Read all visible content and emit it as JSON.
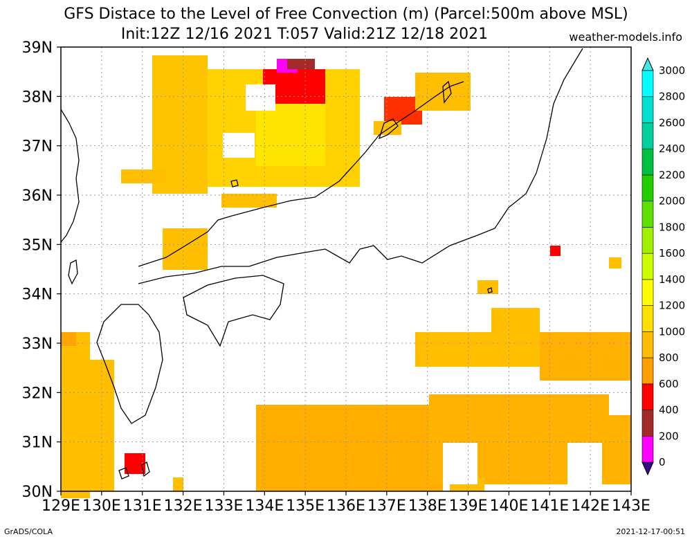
{
  "title": {
    "line1": "GFS Distace to the Level of Free Convection (m) (Parcel:500m above MSL)",
    "line2": "Init:12Z 12/16 2021 T:057 Valid:21Z 12/18 2021",
    "site": "weather-models.info"
  },
  "footer": {
    "left": "GrADS/COLA",
    "right": "2021-12-17-00:51"
  },
  "map": {
    "lon_labels": [
      "129E",
      "130E",
      "131E",
      "132E",
      "133E",
      "134E",
      "135E",
      "136E",
      "137E",
      "138E",
      "139E",
      "140E",
      "141E",
      "142E",
      "143E"
    ],
    "lat_labels": [
      "30N",
      "31N",
      "32N",
      "33N",
      "34N",
      "35N",
      "36N",
      "37N",
      "38N",
      "39N"
    ],
    "grid": "dotted"
  },
  "colorbar": {
    "labels": [
      "0",
      "200",
      "400",
      "600",
      "800",
      "1000",
      "1200",
      "1400",
      "1600",
      "1800",
      "2000",
      "2200",
      "2400",
      "2600",
      "2800",
      "3000"
    ],
    "colors": [
      "#3b0a8c",
      "#ff00ff",
      "#a52a2a",
      "#ff0000",
      "#ff9f00",
      "#ffbf00",
      "#ffdf00",
      "#ffff00",
      "#d0ff00",
      "#a0f000",
      "#60e000",
      "#20d000",
      "#00c040",
      "#00d0a0",
      "#00e0d0",
      "#00ffff"
    ],
    "under_color": "#3b0a8c",
    "over_color": "#40e8e8"
  }
}
